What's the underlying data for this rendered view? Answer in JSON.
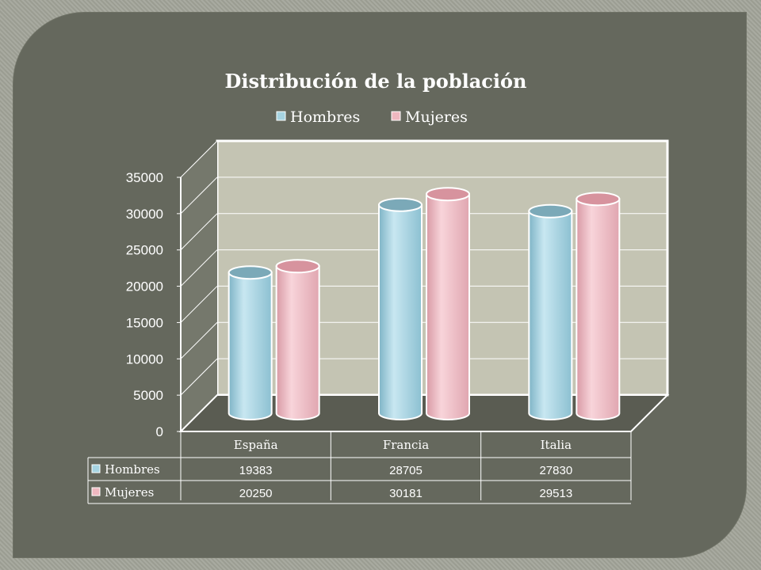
{
  "chart_data": {
    "type": "bar",
    "title": "Distribución de la población",
    "categories": [
      "España",
      "Francia",
      "Italia"
    ],
    "series": [
      {
        "name": "Hombres",
        "values": [
          19383,
          28705,
          27830
        ],
        "color": "#a6d4e2"
      },
      {
        "name": "Mujeres",
        "values": [
          20250,
          30181,
          29513
        ],
        "color": "#efb8c0"
      }
    ],
    "ylim": [
      0,
      35000
    ],
    "yticks": [
      0,
      5000,
      10000,
      15000,
      20000,
      25000,
      30000,
      35000
    ],
    "grid": true,
    "legend": "top",
    "data_table": true,
    "style": "3d-cylinder"
  },
  "colors": {
    "background": "#a3a59a",
    "panel": "#65685d",
    "plot_wall": "#c4c4b3",
    "grid": "#ffffff",
    "text": "#ffffff"
  }
}
